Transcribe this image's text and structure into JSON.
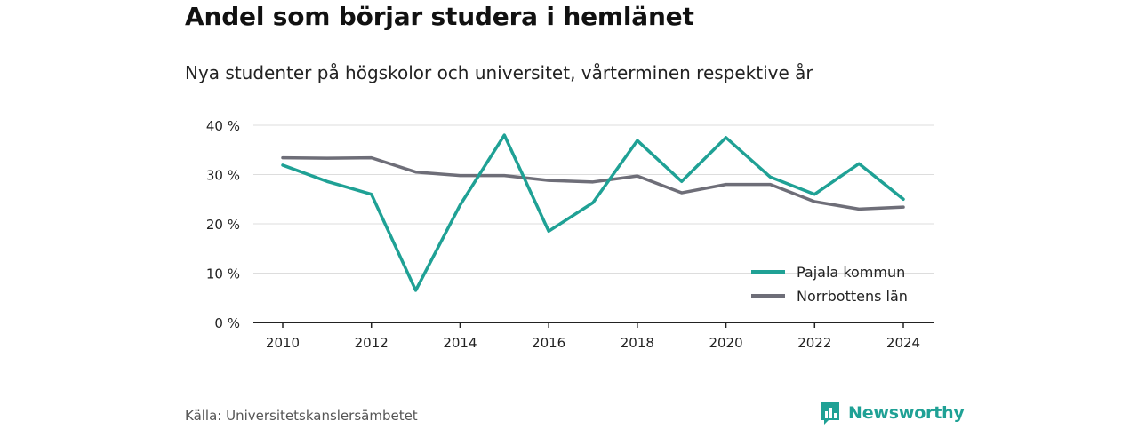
{
  "header": {
    "title": "Andel som börjar studera i hemlänet",
    "subtitle": "Nya studenter på högskolor och universitet, vårterminen respektive år"
  },
  "footer": {
    "source": "Källa: Universitetskanslersämbetet",
    "brand": "Newsworthy",
    "brand_icon": "bar-chart-icon"
  },
  "colors": {
    "accent": "#1fa195",
    "series_pajala": "#1fa195",
    "series_norrbotten": "#6e6e78",
    "grid": "#dddddd",
    "axis": "#222222"
  },
  "chart_data": {
    "type": "line",
    "x": [
      2010,
      2011,
      2012,
      2013,
      2014,
      2015,
      2016,
      2017,
      2018,
      2019,
      2020,
      2021,
      2022,
      2023,
      2024
    ],
    "series": [
      {
        "name": "Pajala kommun",
        "values": [
          31.9,
          28.6,
          26.0,
          6.5,
          23.8,
          38.0,
          18.5,
          24.3,
          36.9,
          28.6,
          37.5,
          29.5,
          26.0,
          32.2,
          25.0
        ]
      },
      {
        "name": "Norrbottens län",
        "values": [
          33.4,
          33.3,
          33.4,
          30.5,
          29.8,
          29.8,
          28.8,
          28.5,
          29.7,
          26.3,
          28.0,
          28.0,
          24.5,
          23.0,
          23.4
        ]
      }
    ],
    "xticks": [
      "2010",
      "2012",
      "2014",
      "2016",
      "2018",
      "2020",
      "2022",
      "2024"
    ],
    "yticks": [
      "0 %",
      "10 %",
      "20 %",
      "30 %",
      "40 %"
    ],
    "ylim": [
      0,
      40
    ],
    "grid": true,
    "legend_position": "bottom-right"
  }
}
